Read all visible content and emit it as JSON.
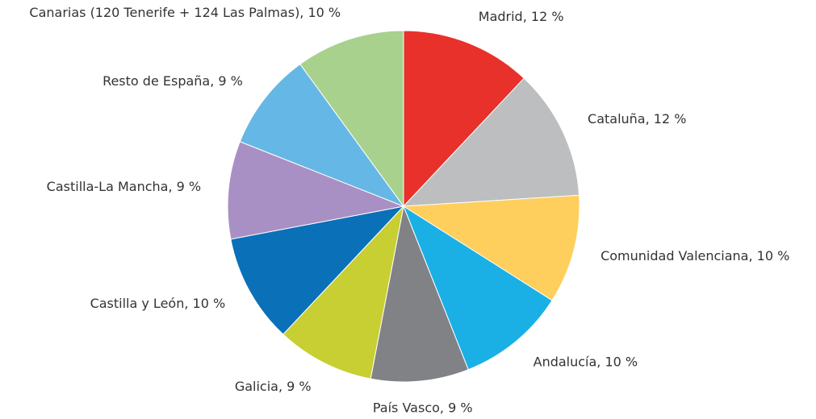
{
  "chart_data": {
    "type": "pie",
    "values": [
      12,
      12,
      10,
      10,
      9,
      9,
      10,
      9,
      9,
      10
    ],
    "value_labels": [
      "Madrid, 12 %",
      "Cataluña, 12 %",
      "Comunidad Valenciana, 10 %",
      "Andalucía, 10 %",
      "País Vasco, 9 %",
      "Galicia, 9 %",
      "Castilla y León, 10 %",
      "Castilla-La Mancha, 9 %",
      "Resto de España, 9 %",
      "Canarias (120 Tenerife + 124 Las Palmas), 10 %"
    ],
    "colors": [
      "#e8312a",
      "#bcbec0",
      "#fecf5c",
      "#1ab0e6",
      "#808285",
      "#c7cf33",
      "#0a70b8",
      "#a990c4",
      "#65b8e5",
      "#a8d18d"
    ]
  }
}
